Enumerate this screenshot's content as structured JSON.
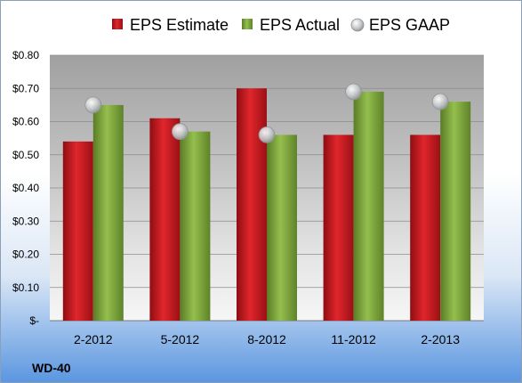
{
  "chart_data": {
    "type": "bar",
    "ticker": "WD-40",
    "categories": [
      "2-2012",
      "5-2012",
      "8-2012",
      "11-2012",
      "2-2013"
    ],
    "series": [
      {
        "name": "EPS Estimate",
        "kind": "bar",
        "color": "#c8191e",
        "values": [
          0.54,
          0.61,
          0.7,
          0.56,
          0.56
        ]
      },
      {
        "name": "EPS Actual",
        "kind": "bar",
        "color": "#7ea43c",
        "values": [
          0.65,
          0.57,
          0.56,
          0.69,
          0.66
        ]
      },
      {
        "name": "EPS GAAP",
        "kind": "scatter",
        "color": "#b4b8bc",
        "values": [
          0.65,
          0.57,
          0.56,
          0.69,
          0.66
        ]
      }
    ],
    "y_ticks": [
      "$-",
      "$0.10",
      "$0.20",
      "$0.30",
      "$0.40",
      "$0.50",
      "$0.60",
      "$0.70",
      "$0.80"
    ],
    "ylim": [
      0,
      0.8
    ],
    "grid": true,
    "legend_position": "top"
  }
}
